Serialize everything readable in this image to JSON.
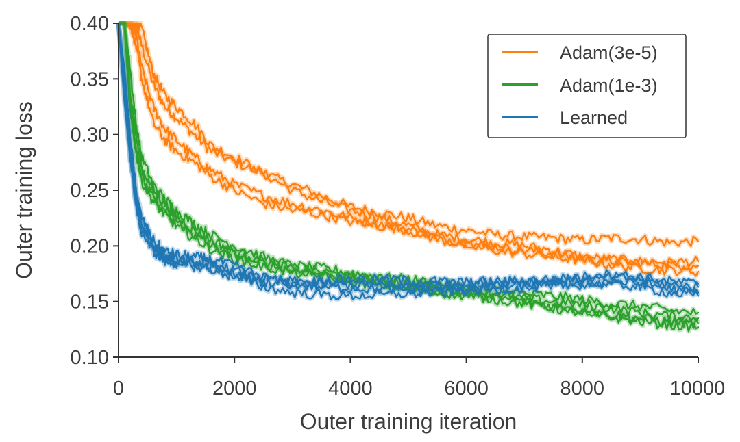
{
  "chart_data": {
    "type": "line",
    "title": "",
    "xlabel": "Outer training iteration",
    "ylabel": "Outer training loss",
    "xlim": [
      0,
      10000
    ],
    "ylim": [
      0.1,
      0.4
    ],
    "xticks": [
      0,
      2000,
      4000,
      6000,
      8000,
      10000
    ],
    "xtick_labels": [
      "0",
      "2000",
      "4000",
      "6000",
      "8000",
      "10000"
    ],
    "yticks": [
      0.1,
      0.15,
      0.2,
      0.25,
      0.3,
      0.35,
      0.4
    ],
    "ytick_labels": [
      "0.10",
      "0.15",
      "0.20",
      "0.25",
      "0.30",
      "0.35",
      "0.40"
    ],
    "grid": false,
    "legend_position": "top-right",
    "x": [
      0,
      100,
      200,
      300,
      400,
      600,
      800,
      1000,
      1300,
      1600,
      2000,
      2500,
      3000,
      3500,
      4000,
      4500,
      5000,
      5500,
      6000,
      6500,
      7000,
      7500,
      8000,
      8500,
      9000,
      9500,
      10000
    ],
    "series": [
      {
        "name": "Adam(3e-5)",
        "color": "#ff7f0e",
        "runs": [
          [
            0.4,
            0.4,
            0.4,
            0.4,
            0.38,
            0.345,
            0.325,
            0.315,
            0.3,
            0.285,
            0.275,
            0.265,
            0.255,
            0.245,
            0.235,
            0.23,
            0.225,
            0.218,
            0.214,
            0.21,
            0.208,
            0.207,
            0.205,
            0.207,
            0.206,
            0.203,
            0.204
          ],
          [
            0.4,
            0.4,
            0.4,
            0.4,
            0.395,
            0.355,
            0.335,
            0.325,
            0.31,
            0.29,
            0.28,
            0.265,
            0.25,
            0.24,
            0.232,
            0.226,
            0.218,
            0.21,
            0.206,
            0.203,
            0.2,
            0.196,
            0.19,
            0.188,
            0.186,
            0.185,
            0.186
          ],
          [
            0.4,
            0.4,
            0.4,
            0.39,
            0.36,
            0.325,
            0.305,
            0.295,
            0.28,
            0.268,
            0.255,
            0.245,
            0.238,
            0.232,
            0.225,
            0.22,
            0.215,
            0.208,
            0.203,
            0.199,
            0.196,
            0.193,
            0.188,
            0.186,
            0.185,
            0.183,
            0.182
          ],
          [
            0.4,
            0.4,
            0.4,
            0.38,
            0.35,
            0.31,
            0.295,
            0.285,
            0.275,
            0.262,
            0.25,
            0.238,
            0.232,
            0.228,
            0.222,
            0.218,
            0.214,
            0.206,
            0.2,
            0.196,
            0.193,
            0.19,
            0.187,
            0.183,
            0.18,
            0.178,
            0.177
          ]
        ]
      },
      {
        "name": "Adam(1e-3)",
        "color": "#2ca02c",
        "runs": [
          [
            0.4,
            0.4,
            0.36,
            0.31,
            0.28,
            0.255,
            0.242,
            0.232,
            0.22,
            0.21,
            0.2,
            0.19,
            0.182,
            0.18,
            0.176,
            0.172,
            0.17,
            0.166,
            0.163,
            0.16,
            0.157,
            0.155,
            0.152,
            0.148,
            0.146,
            0.142,
            0.14
          ],
          [
            0.4,
            0.4,
            0.34,
            0.3,
            0.27,
            0.25,
            0.238,
            0.226,
            0.214,
            0.205,
            0.195,
            0.186,
            0.18,
            0.177,
            0.172,
            0.17,
            0.167,
            0.163,
            0.16,
            0.157,
            0.153,
            0.15,
            0.147,
            0.144,
            0.14,
            0.137,
            0.135
          ],
          [
            0.4,
            0.4,
            0.33,
            0.29,
            0.262,
            0.243,
            0.232,
            0.222,
            0.21,
            0.2,
            0.192,
            0.184,
            0.178,
            0.175,
            0.17,
            0.167,
            0.164,
            0.16,
            0.157,
            0.154,
            0.15,
            0.146,
            0.142,
            0.138,
            0.135,
            0.132,
            0.13
          ],
          [
            0.4,
            0.4,
            0.32,
            0.285,
            0.258,
            0.24,
            0.228,
            0.218,
            0.207,
            0.197,
            0.188,
            0.181,
            0.176,
            0.173,
            0.168,
            0.165,
            0.162,
            0.158,
            0.155,
            0.152,
            0.148,
            0.144,
            0.14,
            0.136,
            0.132,
            0.129,
            0.127
          ]
        ]
      },
      {
        "name": "Learned",
        "color": "#1f77b4",
        "runs": [
          [
            0.4,
            0.36,
            0.3,
            0.25,
            0.225,
            0.205,
            0.195,
            0.192,
            0.19,
            0.188,
            0.182,
            0.172,
            0.165,
            0.163,
            0.162,
            0.161,
            0.16,
            0.161,
            0.162,
            0.163,
            0.164,
            0.165,
            0.166,
            0.168,
            0.166,
            0.162,
            0.158
          ],
          [
            0.4,
            0.35,
            0.29,
            0.245,
            0.22,
            0.2,
            0.19,
            0.188,
            0.186,
            0.183,
            0.178,
            0.17,
            0.168,
            0.166,
            0.165,
            0.164,
            0.164,
            0.165,
            0.166,
            0.167,
            0.168,
            0.169,
            0.17,
            0.172,
            0.17,
            0.165,
            0.163
          ],
          [
            0.4,
            0.34,
            0.285,
            0.24,
            0.215,
            0.198,
            0.188,
            0.186,
            0.184,
            0.181,
            0.175,
            0.168,
            0.166,
            0.169,
            0.17,
            0.17,
            0.169,
            0.168,
            0.167,
            0.168,
            0.169,
            0.17,
            0.172,
            0.175,
            0.172,
            0.168,
            0.166
          ],
          [
            0.4,
            0.33,
            0.28,
            0.236,
            0.212,
            0.195,
            0.186,
            0.184,
            0.182,
            0.179,
            0.172,
            0.163,
            0.158,
            0.156,
            0.155,
            0.156,
            0.157,
            0.158,
            0.16,
            0.161,
            0.162,
            0.164,
            0.165,
            0.166,
            0.163,
            0.158,
            0.155
          ]
        ]
      }
    ]
  }
}
